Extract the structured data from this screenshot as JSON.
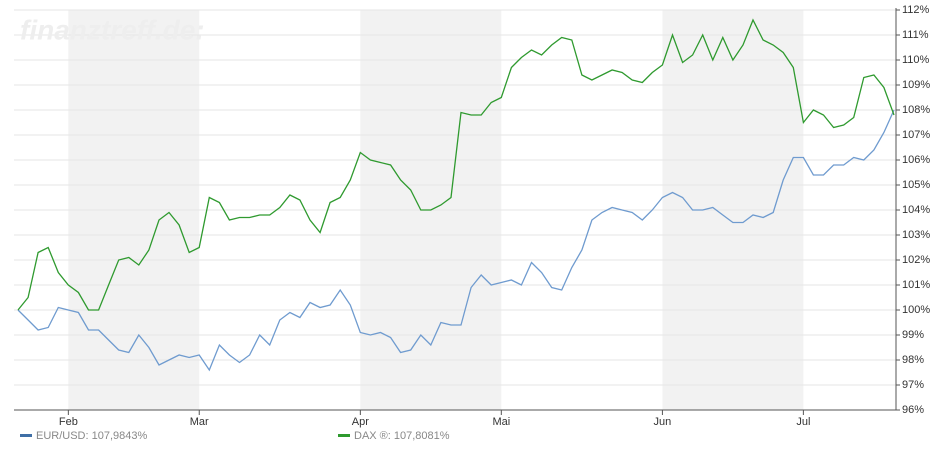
{
  "chart_data": {
    "type": "line",
    "watermark": "finanztreff.de:",
    "categories": [
      null,
      null,
      null,
      null,
      null,
      "Feb",
      null,
      null,
      null,
      null,
      null,
      null,
      null,
      null,
      null,
      null,
      null,
      null,
      "Mar",
      null,
      null,
      null,
      null,
      null,
      null,
      null,
      null,
      null,
      null,
      null,
      null,
      null,
      null,
      null,
      "Apr",
      null,
      null,
      null,
      null,
      null,
      null,
      null,
      null,
      null,
      null,
      null,
      null,
      null,
      "Mai",
      null,
      null,
      null,
      null,
      null,
      null,
      null,
      null,
      null,
      null,
      null,
      null,
      null,
      null,
      null,
      "Jun",
      null,
      null,
      null,
      null,
      null,
      null,
      null,
      null,
      null,
      null,
      null,
      null,
      null,
      "Jul",
      null,
      null,
      null,
      null,
      null,
      null,
      null,
      null,
      null
    ],
    "series": [
      {
        "name": "EUR/USD: 107,9843%",
        "color": "#6f9bcf",
        "legend_color": "#3f6fa6",
        "values": [
          100.0,
          99.6,
          99.2,
          99.3,
          100.1,
          100.0,
          99.9,
          99.2,
          99.2,
          98.8,
          98.4,
          98.3,
          99.0,
          98.5,
          97.8,
          98.0,
          98.2,
          98.1,
          98.2,
          97.6,
          98.6,
          98.2,
          97.9,
          98.2,
          99.0,
          98.6,
          99.6,
          99.9,
          99.7,
          100.3,
          100.1,
          100.2,
          100.8,
          100.2,
          99.1,
          99.0,
          99.1,
          98.9,
          98.3,
          98.4,
          99.0,
          98.6,
          99.5,
          99.4,
          99.4,
          100.9,
          101.4,
          101.0,
          101.1,
          101.2,
          101.0,
          101.9,
          101.5,
          100.9,
          100.8,
          101.7,
          102.4,
          103.6,
          103.9,
          104.1,
          104.0,
          103.9,
          103.6,
          104.0,
          104.5,
          104.7,
          104.5,
          104.0,
          104.0,
          104.1,
          103.8,
          103.5,
          103.5,
          103.8,
          103.7,
          103.9,
          105.2,
          106.1,
          106.1,
          105.4,
          105.4,
          105.8,
          105.8,
          106.1,
          106.0,
          106.4,
          107.1,
          108.0
        ]
      },
      {
        "name": "DAX ®: 107,8081%",
        "color": "#2f9a2f",
        "legend_color": "#2f9a2f",
        "values": [
          100.0,
          100.5,
          102.3,
          102.5,
          101.5,
          101.0,
          100.7,
          100.0,
          100.0,
          101.0,
          102.0,
          102.1,
          101.8,
          102.4,
          103.6,
          103.9,
          103.4,
          102.3,
          102.5,
          104.5,
          104.3,
          103.6,
          103.7,
          103.7,
          103.8,
          103.8,
          104.1,
          104.6,
          104.4,
          103.6,
          103.1,
          104.3,
          104.5,
          105.2,
          106.3,
          106.0,
          105.9,
          105.8,
          105.2,
          104.8,
          104.0,
          104.0,
          104.2,
          104.5,
          107.9,
          107.8,
          107.8,
          108.3,
          108.5,
          109.7,
          110.1,
          110.4,
          110.2,
          110.6,
          110.9,
          110.8,
          109.4,
          109.2,
          109.4,
          109.6,
          109.5,
          109.2,
          109.1,
          109.5,
          109.8,
          111.0,
          109.9,
          110.2,
          111.0,
          110.0,
          110.9,
          110.0,
          110.6,
          111.6,
          110.8,
          110.6,
          110.3,
          109.7,
          107.5,
          108.0,
          107.8,
          107.3,
          107.4,
          107.7,
          109.3,
          109.4,
          108.9,
          107.8
        ]
      }
    ],
    "ylim": [
      96,
      112
    ],
    "yticks": [
      {
        "value": 96,
        "label": "96%"
      },
      {
        "value": 97,
        "label": "97%"
      },
      {
        "value": 98,
        "label": "98%"
      },
      {
        "value": 99,
        "label": "99%"
      },
      {
        "value": 100,
        "label": "100%"
      },
      {
        "value": 101,
        "label": "101%"
      },
      {
        "value": 102,
        "label": "102%"
      },
      {
        "value": 103,
        "label": "103%"
      },
      {
        "value": 104,
        "label": "104%"
      },
      {
        "value": 105,
        "label": "105%"
      },
      {
        "value": 106,
        "label": "106%"
      },
      {
        "value": 107,
        "label": "107%"
      },
      {
        "value": 108,
        "label": "108%"
      },
      {
        "value": 109,
        "label": "109%"
      },
      {
        "value": 110,
        "label": "110%"
      },
      {
        "value": 111,
        "label": "111%"
      },
      {
        "value": 112,
        "label": "112%"
      }
    ],
    "grid": true,
    "band_color": "#f2f2f2"
  }
}
